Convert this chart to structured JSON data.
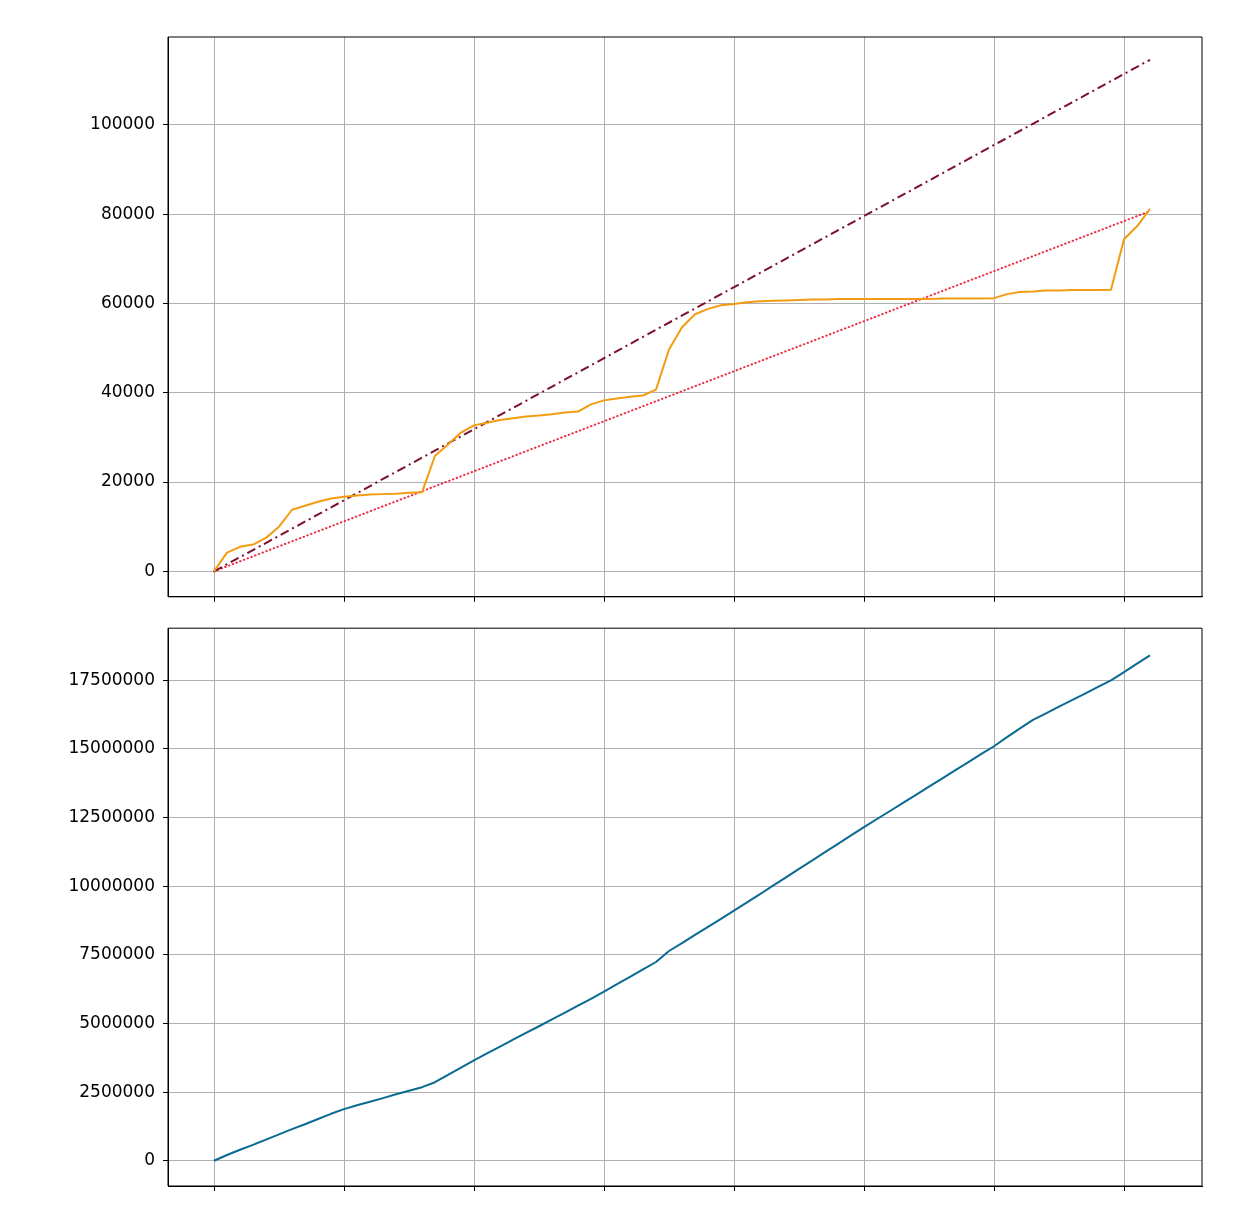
{
  "chart_data": [
    {
      "type": "line",
      "categories": [
        null,
        null,
        null,
        null,
        null,
        null,
        null,
        null,
        null,
        null,
        null,
        null,
        null,
        null,
        null,
        null,
        null,
        null,
        null,
        null,
        null,
        null,
        null,
        null,
        null,
        null,
        null,
        null,
        null,
        null,
        null,
        null,
        null,
        null,
        null,
        null,
        null,
        null,
        null,
        null,
        null,
        null,
        null,
        null,
        null,
        null,
        null,
        null,
        null,
        null,
        null,
        null,
        null,
        null,
        null,
        null,
        null,
        null,
        null,
        null,
        null,
        null,
        null,
        null,
        null,
        null,
        null,
        null,
        null,
        null,
        null,
        null,
        null
      ],
      "series": [
        {
          "color": "#f39c12",
          "line_style": "solid",
          "values": [
            0,
            4200,
            5500,
            6000,
            7500,
            10000,
            13800,
            14700,
            15600,
            16300,
            16700,
            17000,
            17200,
            17300,
            17400,
            17600,
            17700,
            25900,
            28400,
            31100,
            32700,
            33300,
            33900,
            34300,
            34700,
            34900,
            35200,
            35600,
            35800,
            37400,
            38300,
            38700,
            39100,
            39400,
            40700,
            49700,
            54700,
            57600,
            58800,
            59600,
            59900,
            60300,
            60500,
            60600,
            60700,
            60800,
            60900,
            60900,
            61000,
            61000,
            61000,
            61000,
            61000,
            61000,
            61000,
            61000,
            61100,
            61100,
            61100,
            61100,
            61200,
            62100,
            62600,
            62700,
            62900,
            62900,
            63000,
            63000,
            63000,
            63100,
            74400,
            77300,
            81200
          ]
        },
        {
          "color": "#7b1030",
          "line_style": "dashdot",
          "values": [
            0,
            null,
            null,
            null,
            null,
            null,
            null,
            null,
            null,
            null,
            null,
            null,
            null,
            null,
            null,
            null,
            null,
            null,
            null,
            null,
            null,
            null,
            null,
            null,
            null,
            null,
            null,
            null,
            null,
            null,
            null,
            null,
            null,
            null,
            null,
            null,
            null,
            null,
            null,
            null,
            null,
            null,
            null,
            null,
            null,
            null,
            null,
            null,
            null,
            null,
            null,
            null,
            null,
            null,
            null,
            null,
            null,
            null,
            null,
            null,
            null,
            null,
            null,
            null,
            null,
            null,
            null,
            null,
            null,
            null,
            null,
            null,
            114600
          ]
        },
        {
          "color": "#ee2c44",
          "line_style": "dotted",
          "values": [
            0,
            null,
            null,
            null,
            null,
            null,
            null,
            null,
            null,
            null,
            null,
            null,
            null,
            null,
            null,
            null,
            null,
            null,
            null,
            null,
            null,
            null,
            null,
            null,
            null,
            null,
            null,
            null,
            null,
            null,
            null,
            null,
            null,
            null,
            null,
            null,
            null,
            null,
            null,
            null,
            null,
            null,
            null,
            null,
            null,
            null,
            null,
            null,
            null,
            null,
            null,
            null,
            null,
            null,
            null,
            null,
            null,
            null,
            null,
            null,
            null,
            null,
            null,
            null,
            null,
            null,
            null,
            null,
            null,
            null,
            null,
            null,
            80700
          ]
        }
      ],
      "ylim": [
        -5700,
        119700
      ],
      "yticks": [
        0,
        20000,
        40000,
        60000,
        80000,
        100000
      ],
      "grid": true,
      "legend": false,
      "marker": "none",
      "tick_labels": "y"
    },
    {
      "type": "line",
      "categories": [
        null,
        null,
        null,
        null,
        null,
        null,
        null,
        null,
        null,
        null,
        null,
        null,
        null,
        null,
        null,
        null,
        null,
        null,
        null,
        null,
        null,
        null,
        null,
        null,
        null,
        null,
        null,
        null,
        null,
        null,
        null,
        null,
        null,
        null,
        null,
        null,
        null,
        null,
        null,
        null,
        null,
        null,
        null,
        null,
        null,
        null,
        null,
        null,
        null,
        null,
        null,
        null,
        null,
        null,
        null,
        null,
        null,
        null,
        null,
        null,
        null,
        null,
        null,
        null,
        null,
        null,
        null,
        null,
        null,
        null,
        null,
        null,
        null
      ],
      "series": [
        {
          "color": "#0a6a92",
          "line_style": "solid",
          "values": [
            0,
            210000,
            400000,
            580000,
            770000,
            960000,
            1150000,
            1330000,
            1520000,
            1710000,
            1880000,
            2020000,
            2150000,
            2280000,
            2420000,
            2550000,
            2680000,
            2860000,
            3130000,
            3390000,
            3660000,
            3910000,
            4160000,
            4410000,
            4660000,
            4900000,
            5150000,
            5400000,
            5650000,
            5900000,
            6160000,
            6430000,
            6700000,
            6970000,
            7240000,
            7640000,
            7930000,
            8230000,
            8520000,
            8810000,
            9110000,
            9410000,
            9710000,
            10020000,
            10320000,
            10630000,
            10930000,
            11240000,
            11540000,
            11850000,
            12150000,
            12450000,
            12740000,
            13040000,
            13330000,
            13630000,
            13920000,
            14220000,
            14510000,
            14810000,
            15100000,
            15430000,
            15750000,
            16060000,
            16300000,
            16540000,
            16780000,
            17020000,
            17260000,
            17500000,
            17800000,
            18110000,
            18410000
          ]
        }
      ],
      "ylim": [
        -920000,
        19400000
      ],
      "yticks": [
        0,
        2500000,
        5000000,
        7500000,
        10000000,
        12500000,
        15000000,
        17500000
      ],
      "grid": true,
      "legend": false,
      "marker": "none",
      "tick_labels": "y"
    }
  ]
}
